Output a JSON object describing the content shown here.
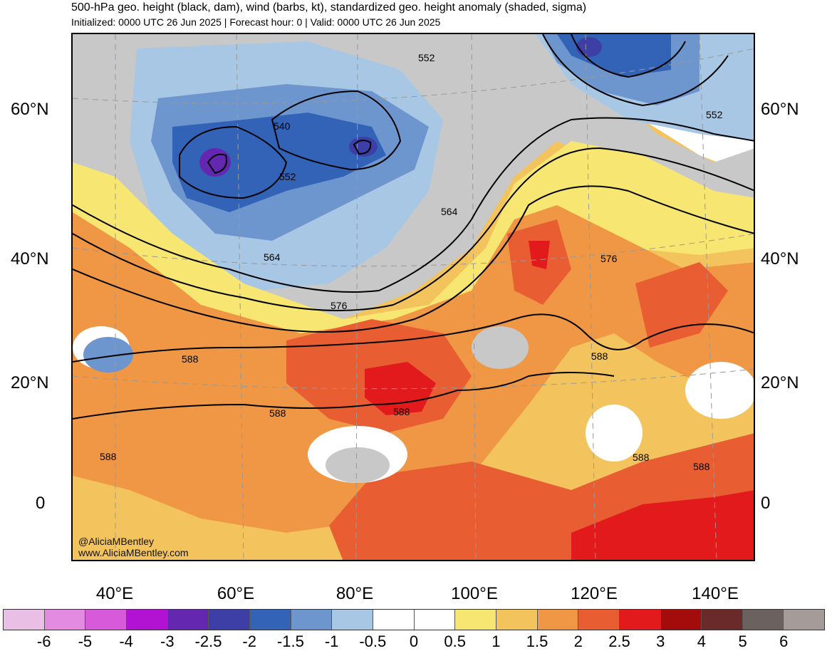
{
  "header": {
    "title": "500-hPa geo. height (black, dam), wind (barbs, kt), standardized geo. height anomaly (shaded, sigma)",
    "subtitle": "Initialized: 0000 UTC 26 Jun 2025 | Forecast hour: 0 | Valid: 0000 UTC 26 Jun 2025"
  },
  "map": {
    "lat_labels_left": [
      "60°N",
      "40°N",
      "20°N",
      "0"
    ],
    "lat_labels_right": [
      "60°N",
      "40°N",
      "20°N",
      "0"
    ],
    "lon_labels": [
      "40°E",
      "60°E",
      "80°E",
      "100°E",
      "120°E",
      "140°E"
    ],
    "contour_labels": [
      "552",
      "540",
      "552",
      "564",
      "564",
      "576",
      "576",
      "588",
      "588",
      "588",
      "588",
      "588",
      "588",
      "588",
      "552"
    ],
    "credit_handle": "@AliciaMBentley",
    "credit_site": "www.AliciaMBentley.com"
  },
  "colorbar": {
    "labels": [
      "-6",
      "-5",
      "-4",
      "-3",
      "-2.5",
      "-2",
      "-1.5",
      "-1",
      "-0.5",
      "0",
      "0.5",
      "1",
      "1.5",
      "2",
      "2.5",
      "3",
      "4",
      "5",
      "6"
    ],
    "colors": [
      "#e9bfe6",
      "#e38be0",
      "#d65ad9",
      "#b213d2",
      "#6427b0",
      "#3d3ea6",
      "#3263b7",
      "#6d95ce",
      "#a7c7e4",
      "#ffffff",
      "#ffffff",
      "#f8e672",
      "#f3c45e",
      "#ef9744",
      "#e95d33",
      "#e31a1c",
      "#a40c0c",
      "#6b2a2a",
      "#6b6260",
      "#a59c9a"
    ]
  }
}
